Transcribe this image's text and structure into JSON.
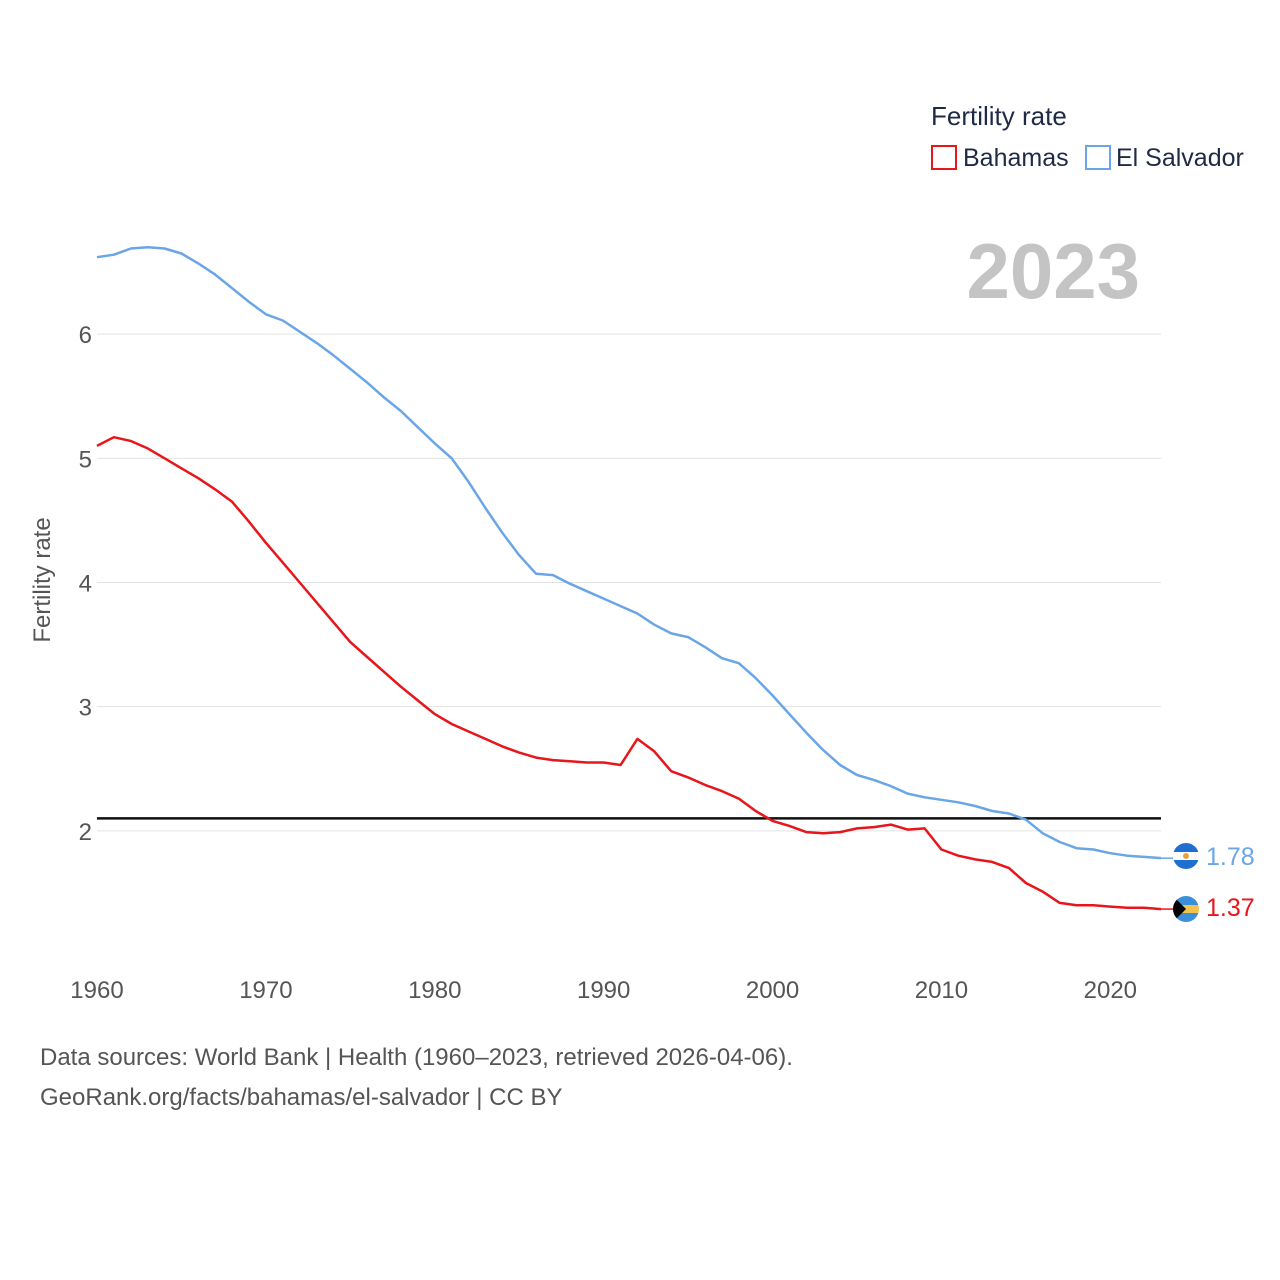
{
  "chart_data": {
    "type": "line",
    "title": "",
    "legend_title": "Fertility rate",
    "legend_position": "top-right",
    "ylabel": "Fertility rate",
    "xlabel": "",
    "year_label": "2023",
    "xlim": [
      1960,
      2023
    ],
    "ylim": [
      1.0,
      7.0
    ],
    "x_ticks": [
      1960,
      1970,
      1980,
      1990,
      2000,
      2010,
      2020
    ],
    "y_ticks": [
      2,
      3,
      4,
      5,
      6
    ],
    "reference_line": 2.1,
    "x": [
      1960,
      1961,
      1962,
      1963,
      1964,
      1965,
      1966,
      1967,
      1968,
      1969,
      1970,
      1971,
      1972,
      1973,
      1974,
      1975,
      1976,
      1977,
      1978,
      1979,
      1980,
      1981,
      1982,
      1983,
      1984,
      1985,
      1986,
      1987,
      1988,
      1989,
      1990,
      1991,
      1992,
      1993,
      1994,
      1995,
      1996,
      1997,
      1998,
      1999,
      2000,
      2001,
      2002,
      2003,
      2004,
      2005,
      2006,
      2007,
      2008,
      2009,
      2010,
      2011,
      2012,
      2013,
      2014,
      2015,
      2016,
      2017,
      2018,
      2019,
      2020,
      2021,
      2022,
      2023
    ],
    "series": [
      {
        "name": "Bahamas",
        "color": "#e8161b",
        "end_label": "1.37",
        "values": [
          5.1,
          5.17,
          5.14,
          5.08,
          5.0,
          4.92,
          4.84,
          4.75,
          4.65,
          4.49,
          4.32,
          4.16,
          4.0,
          3.84,
          3.68,
          3.52,
          3.4,
          3.28,
          3.16,
          3.05,
          2.94,
          2.86,
          2.8,
          2.74,
          2.68,
          2.63,
          2.59,
          2.57,
          2.56,
          2.55,
          2.55,
          2.53,
          2.74,
          2.64,
          2.48,
          2.43,
          2.37,
          2.32,
          2.26,
          2.16,
          2.08,
          2.04,
          1.99,
          1.98,
          1.99,
          2.02,
          2.03,
          2.05,
          2.01,
          2.02,
          1.85,
          1.8,
          1.77,
          1.75,
          1.7,
          1.58,
          1.51,
          1.42,
          1.4,
          1.4,
          1.39,
          1.38,
          1.38,
          1.37
        ]
      },
      {
        "name": "El Salvador",
        "color": "#6aa6e6",
        "end_label": "1.78",
        "values": [
          6.62,
          6.64,
          6.69,
          6.7,
          6.69,
          6.65,
          6.57,
          6.48,
          6.37,
          6.26,
          6.16,
          6.11,
          6.02,
          5.93,
          5.83,
          5.72,
          5.61,
          5.49,
          5.38,
          5.25,
          5.12,
          5.0,
          4.81,
          4.6,
          4.4,
          4.22,
          4.07,
          4.06,
          3.99,
          3.93,
          3.87,
          3.81,
          3.75,
          3.66,
          3.59,
          3.56,
          3.48,
          3.39,
          3.35,
          3.23,
          3.09,
          2.94,
          2.79,
          2.65,
          2.53,
          2.45,
          2.41,
          2.36,
          2.3,
          2.27,
          2.25,
          2.23,
          2.2,
          2.16,
          2.14,
          2.09,
          1.98,
          1.91,
          1.86,
          1.85,
          1.82,
          1.8,
          1.79,
          1.78
        ]
      }
    ]
  },
  "footer": {
    "source_line": "Data sources: World Bank | Health (1960–2023, retrieved 2026-04-06).",
    "credit_line": "GeoRank.org/facts/bahamas/el-salvador | CC BY"
  }
}
